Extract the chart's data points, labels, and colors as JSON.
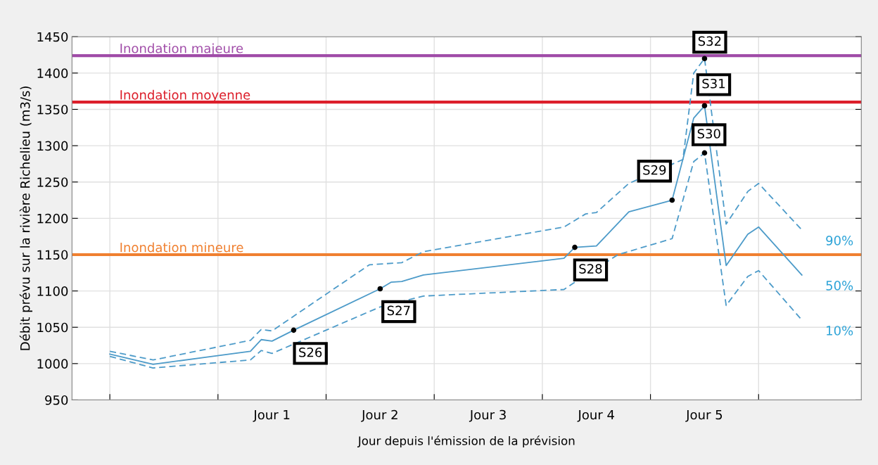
{
  "chart_data": {
    "type": "line",
    "xlabel": "Jour depuis l'émission de la prévision",
    "ylabel": "Débit prévu sur la rivière Richelieu (m3/s)",
    "categories": [
      null,
      null,
      null,
      null,
      null,
      null,
      null,
      null,
      null,
      null,
      null,
      null,
      null,
      null,
      null,
      null,
      null,
      null,
      "Jour 1",
      null,
      null,
      null,
      null,
      null,
      null,
      null,
      null,
      null,
      "Jour 2",
      null,
      null,
      null,
      null,
      null,
      null,
      null,
      null,
      null,
      "Jour 3",
      null,
      null,
      null,
      null,
      null,
      null,
      null,
      null,
      null,
      "Jour 4",
      null,
      null,
      null,
      null,
      null,
      null,
      null,
      null,
      null,
      "Jour 5",
      null,
      null,
      null,
      null,
      null,
      null,
      null,
      null,
      null,
      null,
      null,
      null,
      null,
      null
    ],
    "ylim": [
      950,
      1450
    ],
    "yticks": [
      950,
      1000,
      1050,
      1100,
      1150,
      1200,
      1250,
      1300,
      1350,
      1400,
      1450
    ],
    "grid": true,
    "series": [
      {
        "name": "90%",
        "color": "#4d9bc9",
        "line_style": "dashed",
        "values": [
          null,
          null,
          null,
          1017,
          null,
          null,
          null,
          1005,
          null,
          null,
          null,
          null,
          null,
          null,
          null,
          null,
          1032,
          1047,
          1045,
          null,
          null,
          null,
          null,
          null,
          null,
          null,
          null,
          1136,
          null,
          null,
          1139,
          null,
          1154,
          null,
          null,
          null,
          null,
          null,
          null,
          null,
          null,
          null,
          null,
          null,
          null,
          1188,
          null,
          1206,
          1208,
          null,
          null,
          1248,
          null,
          null,
          null,
          null,
          1281,
          1400,
          1420,
          null,
          1192,
          null,
          1237,
          1248,
          null,
          null,
          null,
          1184,
          null,
          null,
          null,
          null,
          null
        ]
      },
      {
        "name": "50%",
        "color": "#4d9bc9",
        "line_style": "solid",
        "values": [
          null,
          null,
          null,
          1013,
          null,
          null,
          null,
          999,
          null,
          null,
          null,
          null,
          null,
          null,
          null,
          null,
          1017,
          1033,
          1031,
          null,
          1046,
          null,
          null,
          null,
          null,
          null,
          null,
          null,
          1103,
          1112,
          1113,
          null,
          1122,
          null,
          null,
          null,
          null,
          null,
          null,
          null,
          null,
          null,
          null,
          null,
          null,
          1145,
          1160,
          null,
          1162,
          null,
          null,
          1209,
          null,
          null,
          null,
          1225,
          null,
          1338,
          1355,
          null,
          1135,
          null,
          1178,
          1188,
          null,
          null,
          null,
          1122,
          null,
          null,
          null,
          null,
          null
        ]
      },
      {
        "name": "10%",
        "color": "#4d9bc9",
        "line_style": "dashed",
        "values": [
          null,
          null,
          null,
          1010,
          null,
          null,
          null,
          994,
          null,
          null,
          null,
          null,
          null,
          null,
          null,
          null,
          1005,
          1018,
          1014,
          null,
          null,
          null,
          null,
          null,
          null,
          null,
          null,
          null,
          1078,
          null,
          null,
          null,
          1093,
          null,
          null,
          null,
          null,
          null,
          null,
          null,
          null,
          null,
          null,
          null,
          null,
          1102,
          1112,
          null,
          null,
          null,
          1150,
          null,
          null,
          null,
          null,
          1172,
          null,
          1278,
          1290,
          null,
          1080,
          null,
          1120,
          1128,
          null,
          null,
          null,
          1060,
          null,
          null,
          null,
          null,
          null
        ]
      },
      {
        "type": "scatter",
        "color": "#000000",
        "marker": "circle",
        "values": [
          null,
          null,
          null,
          null,
          null,
          null,
          null,
          null,
          null,
          null,
          null,
          null,
          null,
          null,
          null,
          null,
          null,
          null,
          null,
          null,
          1046,
          null,
          null,
          null,
          null,
          null,
          null,
          null,
          1103,
          null,
          null,
          null,
          null,
          null,
          null,
          null,
          null,
          null,
          null,
          null,
          null,
          null,
          null,
          null,
          null,
          null,
          1160,
          null,
          null,
          null,
          null,
          null,
          null,
          null,
          null,
          1225,
          null,
          null,
          1355,
          null,
          null,
          null,
          null,
          null,
          null,
          null,
          null,
          null,
          null,
          null,
          null,
          null,
          null
        ]
      },
      {
        "type": "scatter",
        "color": "#000000",
        "marker": "circle",
        "values": [
          null,
          null,
          null,
          null,
          null,
          null,
          null,
          null,
          null,
          null,
          null,
          null,
          null,
          null,
          null,
          null,
          null,
          null,
          null,
          null,
          null,
          null,
          null,
          null,
          null,
          null,
          null,
          null,
          null,
          null,
          null,
          null,
          null,
          null,
          null,
          null,
          null,
          null,
          null,
          null,
          null,
          null,
          null,
          null,
          null,
          null,
          null,
          null,
          null,
          null,
          null,
          null,
          null,
          null,
          null,
          null,
          null,
          null,
          1290,
          null,
          null,
          null,
          null,
          null,
          null,
          null,
          null,
          null,
          null,
          null,
          null,
          null,
          null
        ]
      },
      {
        "type": "scatter",
        "color": "#000000",
        "marker": "circle",
        "values": [
          null,
          null,
          null,
          null,
          null,
          null,
          null,
          null,
          null,
          null,
          null,
          null,
          null,
          null,
          null,
          null,
          null,
          null,
          null,
          null,
          null,
          null,
          null,
          null,
          null,
          null,
          null,
          null,
          null,
          null,
          null,
          null,
          null,
          null,
          null,
          null,
          null,
          null,
          null,
          null,
          null,
          null,
          null,
          null,
          null,
          null,
          null,
          null,
          null,
          null,
          null,
          null,
          null,
          null,
          null,
          null,
          null,
          null,
          1420,
          null,
          null,
          null,
          null,
          null,
          null,
          null,
          null,
          null,
          null,
          null,
          null,
          null,
          null
        ]
      }
    ],
    "ref_lines": [
      {
        "axis": "y",
        "value": 1424,
        "label": "Inondation majeure",
        "color": "#a04ca8"
      },
      {
        "axis": "y",
        "value": 1360,
        "label": "Inondation moyenne",
        "color": "#dc1e2a"
      },
      {
        "axis": "y",
        "value": 1150,
        "label": "Inondation mineure",
        "color": "#f08030"
      }
    ],
    "annotations": [
      "S26",
      "S27",
      "S28",
      "S29",
      "S30",
      "S31",
      "S32"
    ]
  }
}
